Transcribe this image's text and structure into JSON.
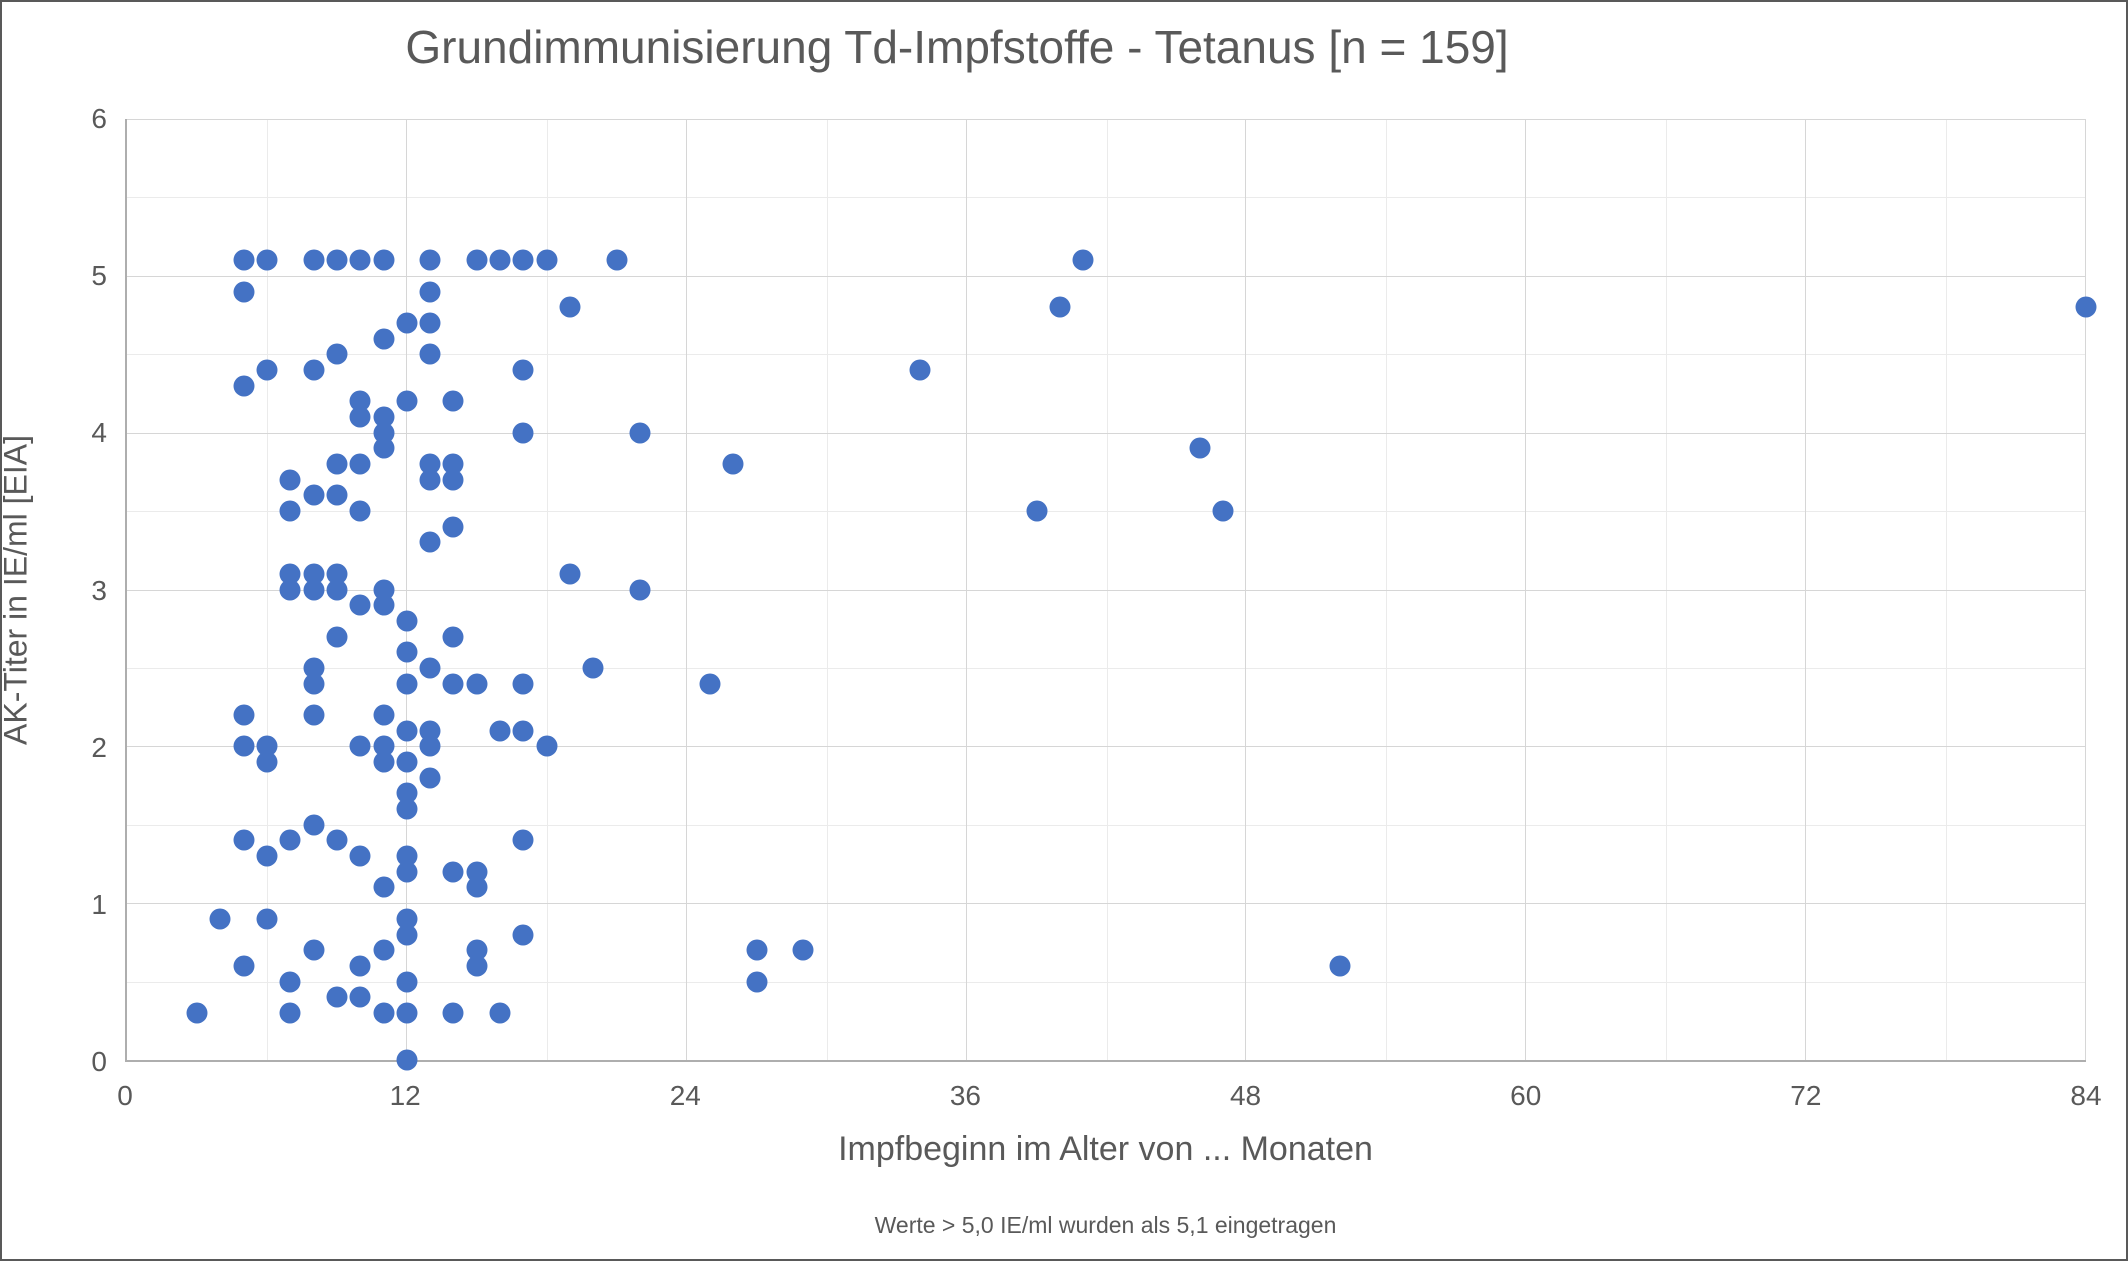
{
  "chart_data": {
    "type": "scatter",
    "title": "Grundimmunisierung Td-Impfstoffe - Tetanus [n = 159]",
    "xlabel": "Impfbeginn im Alter von ... Monaten",
    "ylabel": "AK-Titer in IE/ml [EIA]",
    "footnote": "Werte > 5,0 IE/ml wurden als 5,1 eingetragen",
    "xlim": [
      0,
      84
    ],
    "ylim": [
      0,
      6
    ],
    "x_major_ticks": [
      0,
      12,
      24,
      36,
      48,
      60,
      72,
      84
    ],
    "x_minor_ticks": [
      6,
      18,
      30,
      42,
      54,
      66,
      78
    ],
    "y_major_ticks": [
      0,
      1,
      2,
      3,
      4,
      5,
      6
    ],
    "y_minor_ticks": [
      0.5,
      1.5,
      2.5,
      3.5,
      4.5,
      5.5
    ],
    "grid": "major-and-minor",
    "legend": "none",
    "point_color": "#4472c4",
    "points": [
      [
        5,
        5.1
      ],
      [
        6,
        5.1
      ],
      [
        8,
        5.1
      ],
      [
        9,
        5.1
      ],
      [
        10,
        5.1
      ],
      [
        11,
        5.1
      ],
      [
        13,
        5.1
      ],
      [
        15,
        5.1
      ],
      [
        16,
        5.1
      ],
      [
        17,
        5.1
      ],
      [
        18,
        5.1
      ],
      [
        21,
        5.1
      ],
      [
        41,
        5.1
      ],
      [
        5,
        4.9
      ],
      [
        13,
        4.9
      ],
      [
        19,
        4.8
      ],
      [
        40,
        4.8
      ],
      [
        84,
        4.8
      ],
      [
        12,
        4.7
      ],
      [
        13,
        4.7
      ],
      [
        11,
        4.6
      ],
      [
        9,
        4.5
      ],
      [
        13,
        4.5
      ],
      [
        6,
        4.4
      ],
      [
        8,
        4.4
      ],
      [
        17,
        4.4
      ],
      [
        34,
        4.4
      ],
      [
        5,
        4.3
      ],
      [
        10,
        4.2
      ],
      [
        12,
        4.2
      ],
      [
        14,
        4.2
      ],
      [
        10,
        4.1
      ],
      [
        11,
        4.1
      ],
      [
        11,
        4.0
      ],
      [
        17,
        4.0
      ],
      [
        22,
        4.0
      ],
      [
        11,
        3.9
      ],
      [
        46,
        3.9
      ],
      [
        9,
        3.8
      ],
      [
        10,
        3.8
      ],
      [
        13,
        3.8
      ],
      [
        14,
        3.8
      ],
      [
        26,
        3.8
      ],
      [
        7,
        3.7
      ],
      [
        13,
        3.7
      ],
      [
        14,
        3.7
      ],
      [
        8,
        3.6
      ],
      [
        9,
        3.6
      ],
      [
        7,
        3.5
      ],
      [
        10,
        3.5
      ],
      [
        39,
        3.5
      ],
      [
        47,
        3.5
      ],
      [
        14,
        3.4
      ],
      [
        13,
        3.3
      ],
      [
        7,
        3.1
      ],
      [
        8,
        3.1
      ],
      [
        9,
        3.1
      ],
      [
        19,
        3.1
      ],
      [
        7,
        3.0
      ],
      [
        8,
        3.0
      ],
      [
        9,
        3.0
      ],
      [
        11,
        3.0
      ],
      [
        22,
        3.0
      ],
      [
        10,
        2.9
      ],
      [
        11,
        2.9
      ],
      [
        12,
        2.8
      ],
      [
        9,
        2.7
      ],
      [
        14,
        2.7
      ],
      [
        12,
        2.6
      ],
      [
        8,
        2.5
      ],
      [
        13,
        2.5
      ],
      [
        20,
        2.5
      ],
      [
        8,
        2.4
      ],
      [
        12,
        2.4
      ],
      [
        14,
        2.4
      ],
      [
        15,
        2.4
      ],
      [
        17,
        2.4
      ],
      [
        25,
        2.4
      ],
      [
        5,
        2.2
      ],
      [
        8,
        2.2
      ],
      [
        11,
        2.2
      ],
      [
        12,
        2.1
      ],
      [
        13,
        2.1
      ],
      [
        16,
        2.1
      ],
      [
        17,
        2.1
      ],
      [
        5,
        2.0
      ],
      [
        6,
        2.0
      ],
      [
        10,
        2.0
      ],
      [
        11,
        2.0
      ],
      [
        13,
        2.0
      ],
      [
        18,
        2.0
      ],
      [
        6,
        1.9
      ],
      [
        11,
        1.9
      ],
      [
        12,
        1.9
      ],
      [
        13,
        1.8
      ],
      [
        12,
        1.7
      ],
      [
        12,
        1.6
      ],
      [
        8,
        1.5
      ],
      [
        5,
        1.4
      ],
      [
        7,
        1.4
      ],
      [
        9,
        1.4
      ],
      [
        17,
        1.4
      ],
      [
        6,
        1.3
      ],
      [
        10,
        1.3
      ],
      [
        12,
        1.3
      ],
      [
        12,
        1.2
      ],
      [
        14,
        1.2
      ],
      [
        15,
        1.2
      ],
      [
        11,
        1.1
      ],
      [
        15,
        1.1
      ],
      [
        4,
        0.9
      ],
      [
        6,
        0.9
      ],
      [
        12,
        0.9
      ],
      [
        12,
        0.8
      ],
      [
        17,
        0.8
      ],
      [
        8,
        0.7
      ],
      [
        11,
        0.7
      ],
      [
        15,
        0.7
      ],
      [
        27,
        0.7
      ],
      [
        29,
        0.7
      ],
      [
        5,
        0.6
      ],
      [
        10,
        0.6
      ],
      [
        15,
        0.6
      ],
      [
        52,
        0.6
      ],
      [
        7,
        0.5
      ],
      [
        12,
        0.5
      ],
      [
        27,
        0.5
      ],
      [
        9,
        0.4
      ],
      [
        10,
        0.4
      ],
      [
        3,
        0.3
      ],
      [
        7,
        0.3
      ],
      [
        11,
        0.3
      ],
      [
        12,
        0.3
      ],
      [
        14,
        0.3
      ],
      [
        16,
        0.3
      ],
      [
        12,
        0.0
      ]
    ]
  }
}
